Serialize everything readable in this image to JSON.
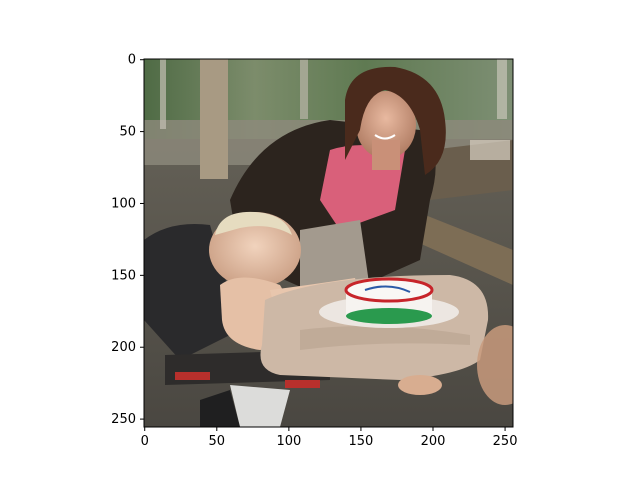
{
  "figure": {
    "image_description_icon": "photo-baby-high-chair-cake-woman",
    "colors": {
      "axis": "#000000",
      "background": "#ffffff"
    }
  },
  "axes": {
    "x_ticks": [
      "0",
      "50",
      "100",
      "150",
      "200",
      "250"
    ],
    "y_ticks": [
      "0",
      "50",
      "100",
      "150",
      "200",
      "250"
    ],
    "x_tick_values": [
      0,
      50,
      100,
      150,
      200,
      250
    ],
    "y_tick_values": [
      0,
      50,
      100,
      150,
      200,
      250
    ],
    "xlim": [
      -0.5,
      255.5
    ],
    "ylim": [
      255.5,
      -0.5
    ]
  }
}
